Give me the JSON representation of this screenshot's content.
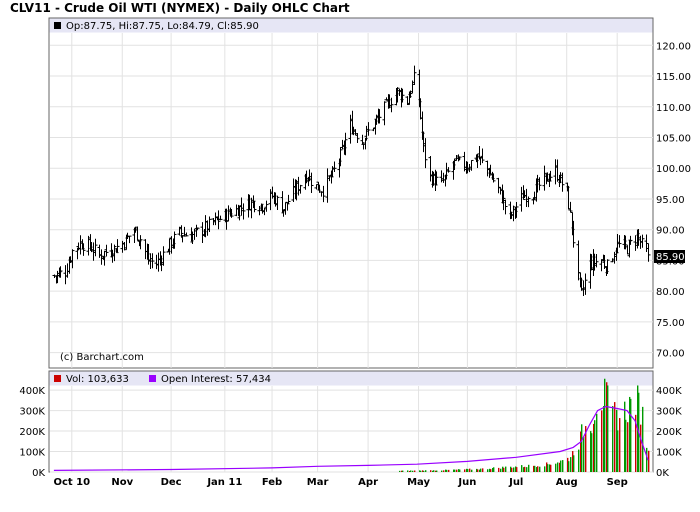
{
  "title": "CLV11 - Crude Oil WTI (NYMEX) - Daily OHLC Chart",
  "price_legend": "Op:87.75, Hi:87.75, Lo:84.79, Cl:85.90",
  "volume_legend": {
    "vol_label": "Vol: 103,633",
    "oi_label": "Open Interest: 57,434"
  },
  "watermark": "(c) Barchart.com",
  "last_price_label": "85.90",
  "colors": {
    "panel_header": "#e6e6f5",
    "grid": "#e2e2e2",
    "bars": "#000000",
    "volume_up": "#009900",
    "volume_down": "#cc0000",
    "open_interest": "#9900ff"
  },
  "chart_data": [
    {
      "type": "ohlc",
      "panel": "price",
      "title": "CLV11 - Crude Oil WTI (NYMEX) - Daily OHLC Chart",
      "y_ticks": [
        "120.00",
        "115.00",
        "110.00",
        "105.00",
        "100.00",
        "95.00",
        "90.00",
        "85.00",
        "80.00",
        "75.00",
        "70.00"
      ],
      "ylim": [
        67.5,
        122
      ],
      "grid": true,
      "last": {
        "open": 87.75,
        "high": 87.75,
        "low": 84.79,
        "close": 85.9
      },
      "closes": [
        {
          "x": "2010-09-20",
          "y": 82.5
        },
        {
          "x": "2010-09-27",
          "y": 83.2
        },
        {
          "x": "2010-10-01",
          "y": 86.5
        },
        {
          "x": "2010-10-06",
          "y": 87.8
        },
        {
          "x": "2010-10-12",
          "y": 87.3
        },
        {
          "x": "2010-10-18",
          "y": 85.8
        },
        {
          "x": "2010-10-22",
          "y": 86.4
        },
        {
          "x": "2010-10-28",
          "y": 87.0
        },
        {
          "x": "2010-11-02",
          "y": 88.0
        },
        {
          "x": "2010-11-08",
          "y": 90.0
        },
        {
          "x": "2010-11-12",
          "y": 88.5
        },
        {
          "x": "2010-11-17",
          "y": 85.0
        },
        {
          "x": "2010-11-22",
          "y": 84.5
        },
        {
          "x": "2010-11-30",
          "y": 87.5
        },
        {
          "x": "2010-12-06",
          "y": 89.5
        },
        {
          "x": "2010-12-13",
          "y": 89.0
        },
        {
          "x": "2010-12-20",
          "y": 90.0
        },
        {
          "x": "2010-12-29",
          "y": 91.5
        },
        {
          "x": "2011-01-05",
          "y": 92.5
        },
        {
          "x": "2011-01-12",
          "y": 93.5
        },
        {
          "x": "2011-01-19",
          "y": 94.5
        },
        {
          "x": "2011-01-26",
          "y": 94.0
        },
        {
          "x": "2011-02-01",
          "y": 95.5
        },
        {
          "x": "2011-02-08",
          "y": 93.5
        },
        {
          "x": "2011-02-14",
          "y": 96.0
        },
        {
          "x": "2011-02-22",
          "y": 99.0
        },
        {
          "x": "2011-02-28",
          "y": 97.0
        },
        {
          "x": "2011-03-04",
          "y": 96.5
        },
        {
          "x": "2011-03-10",
          "y": 99.0
        },
        {
          "x": "2011-03-15",
          "y": 102.0
        },
        {
          "x": "2011-03-21",
          "y": 107.0
        },
        {
          "x": "2011-03-28",
          "y": 104.5
        },
        {
          "x": "2011-04-04",
          "y": 107.0
        },
        {
          "x": "2011-04-08",
          "y": 108.5
        },
        {
          "x": "2011-04-13",
          "y": 110.5
        },
        {
          "x": "2011-04-19",
          "y": 112.5
        },
        {
          "x": "2011-04-25",
          "y": 111.0
        },
        {
          "x": "2011-04-29",
          "y": 114.5
        },
        {
          "x": "2011-05-02",
          "y": 111.0
        },
        {
          "x": "2011-05-05",
          "y": 103.0
        },
        {
          "x": "2011-05-09",
          "y": 98.5
        },
        {
          "x": "2011-05-16",
          "y": 97.5
        },
        {
          "x": "2011-05-24",
          "y": 101.0
        },
        {
          "x": "2011-06-01",
          "y": 100.5
        },
        {
          "x": "2011-06-07",
          "y": 102.0
        },
        {
          "x": "2011-06-14",
          "y": 99.5
        },
        {
          "x": "2011-06-20",
          "y": 96.5
        },
        {
          "x": "2011-06-27",
          "y": 92.0
        },
        {
          "x": "2011-07-05",
          "y": 95.5
        },
        {
          "x": "2011-07-11",
          "y": 96.0
        },
        {
          "x": "2011-07-18",
          "y": 98.0
        },
        {
          "x": "2011-07-25",
          "y": 99.5
        },
        {
          "x": "2011-08-01",
          "y": 96.0
        },
        {
          "x": "2011-08-04",
          "y": 90.5
        },
        {
          "x": "2011-08-08",
          "y": 82.0
        },
        {
          "x": "2011-08-10",
          "y": 79.5
        },
        {
          "x": "2011-08-15",
          "y": 84.5
        },
        {
          "x": "2011-08-22",
          "y": 85.0
        },
        {
          "x": "2011-08-26",
          "y": 84.0
        },
        {
          "x": "2011-09-01",
          "y": 87.5
        },
        {
          "x": "2011-09-07",
          "y": 87.0
        },
        {
          "x": "2011-09-13",
          "y": 89.0
        },
        {
          "x": "2011-09-16",
          "y": 87.5
        },
        {
          "x": "2011-09-20",
          "y": 85.9
        }
      ]
    },
    {
      "type": "bar+line",
      "panel": "volume",
      "y_ticks": [
        "400K",
        "300K",
        "200K",
        "100K",
        "0K"
      ],
      "ylim": [
        0,
        420000
      ],
      "grid": true,
      "x_ticks": [
        "Oct 10",
        "Nov",
        "Dec",
        "Jan 11",
        "Feb",
        "Mar",
        "Apr",
        "May",
        "Jun",
        "Jul",
        "Aug",
        "Sep"
      ],
      "series": [
        {
          "name": "Vol: 103,633",
          "kind": "bar",
          "points": [
            {
              "x": "2011-04-20",
              "y": 6000
            },
            {
              "x": "2011-05-15",
              "y": 9000
            },
            {
              "x": "2011-06-10",
              "y": 16000
            },
            {
              "x": "2011-06-25",
              "y": 25000
            },
            {
              "x": "2011-07-10",
              "y": 32000
            },
            {
              "x": "2011-07-20",
              "y": 40000
            },
            {
              "x": "2011-07-28",
              "y": 55000
            },
            {
              "x": "2011-08-02",
              "y": 70000
            },
            {
              "x": "2011-08-08",
              "y": 150000
            },
            {
              "x": "2011-08-11",
              "y": 220000
            },
            {
              "x": "2011-08-16",
              "y": 260000
            },
            {
              "x": "2011-08-19",
              "y": 360000
            },
            {
              "x": "2011-08-24",
              "y": 390000
            },
            {
              "x": "2011-08-29",
              "y": 300000
            },
            {
              "x": "2011-09-02",
              "y": 280000
            },
            {
              "x": "2011-09-07",
              "y": 330000
            },
            {
              "x": "2011-09-12",
              "y": 370000
            },
            {
              "x": "2011-09-15",
              "y": 330000
            },
            {
              "x": "2011-09-20",
              "y": 103633
            }
          ]
        },
        {
          "name": "Open Interest: 57,434",
          "kind": "line",
          "points": [
            {
              "x": "2010-09-20",
              "y": 8000
            },
            {
              "x": "2010-12-01",
              "y": 12000
            },
            {
              "x": "2011-02-01",
              "y": 20000
            },
            {
              "x": "2011-03-01",
              "y": 28000
            },
            {
              "x": "2011-04-01",
              "y": 32000
            },
            {
              "x": "2011-05-01",
              "y": 38000
            },
            {
              "x": "2011-06-01",
              "y": 52000
            },
            {
              "x": "2011-07-01",
              "y": 72000
            },
            {
              "x": "2011-07-28",
              "y": 100000
            },
            {
              "x": "2011-08-05",
              "y": 120000
            },
            {
              "x": "2011-08-10",
              "y": 150000
            },
            {
              "x": "2011-08-15",
              "y": 230000
            },
            {
              "x": "2011-08-20",
              "y": 300000
            },
            {
              "x": "2011-08-25",
              "y": 320000
            },
            {
              "x": "2011-09-01",
              "y": 310000
            },
            {
              "x": "2011-09-07",
              "y": 300000
            },
            {
              "x": "2011-09-12",
              "y": 250000
            },
            {
              "x": "2011-09-16",
              "y": 150000
            },
            {
              "x": "2011-09-20",
              "y": 57434
            }
          ]
        }
      ]
    }
  ]
}
